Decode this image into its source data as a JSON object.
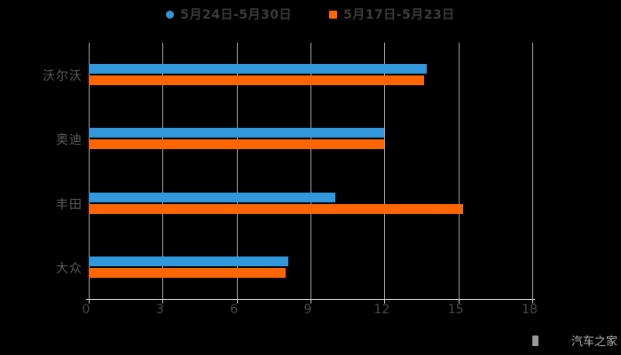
{
  "legend": {
    "items": [
      {
        "label": "5月24日-5月30日",
        "marker": "circle",
        "color": "#3398DB"
      },
      {
        "label": "5月17日-5月23日",
        "marker": "square",
        "color": "#FF6600"
      }
    ]
  },
  "chart_data": {
    "type": "bar",
    "orientation": "horizontal",
    "title": "",
    "xlabel": "",
    "ylabel": "",
    "categories": [
      "沃尔沃",
      "奥迪",
      "丰田",
      "大众"
    ],
    "series": [
      {
        "name": "5月24日-5月30日",
        "color": "#3398DB",
        "values": [
          13.7,
          12.0,
          10.0,
          8.1
        ]
      },
      {
        "name": "5月17日-5月23日",
        "color": "#FF6600",
        "values": [
          13.6,
          12.0,
          15.2,
          8.0
        ]
      }
    ],
    "xlim": [
      0,
      18
    ],
    "x_ticks": [
      0,
      3,
      6,
      9,
      12,
      15,
      18
    ],
    "grid": "vertical-only",
    "legend_position": "top-center",
    "background": "#000000"
  },
  "watermark": {
    "text": "汽车之家"
  },
  "colors": {
    "bg": "#000000",
    "grid-line": "#a6a6a6",
    "axis-line": "#cccccc",
    "tick-label": "#4a4a4a",
    "category-label": "#5c5c5c",
    "legend-text": "#3c3c3c",
    "watermark-text": "#b5b5b5"
  }
}
